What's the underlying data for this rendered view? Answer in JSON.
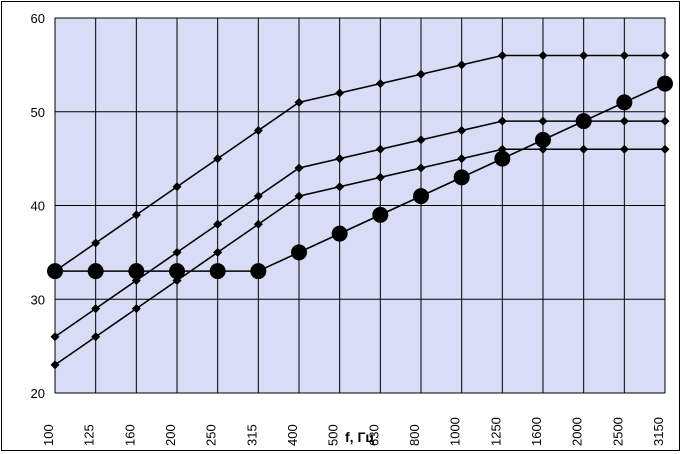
{
  "chart_data": {
    "type": "line",
    "title": "",
    "xlabel": "f, Гц",
    "ylabel": "",
    "categories": [
      "100",
      "125",
      "160",
      "200",
      "250",
      "315",
      "400",
      "500",
      "630",
      "800",
      "1000",
      "1250",
      "1600",
      "2000",
      "2500",
      "3150"
    ],
    "ylim": [
      20,
      60
    ],
    "yticks": [
      20,
      30,
      40,
      50,
      60
    ],
    "grid": true,
    "legend": "none",
    "colors": {
      "plot_bg": "#d8dcf5",
      "line": "#000000",
      "grid": "#000000"
    },
    "series": [
      {
        "marker": "diamond",
        "values": [
          33,
          36,
          39,
          42,
          45,
          48,
          51,
          52,
          53,
          54,
          55,
          56,
          56,
          56,
          56,
          56
        ]
      },
      {
        "marker": "diamond",
        "values": [
          26,
          29,
          32,
          35,
          38,
          41,
          44,
          45,
          46,
          47,
          48,
          49,
          49,
          49,
          49,
          49
        ]
      },
      {
        "marker": "diamond",
        "values": [
          23,
          26,
          29,
          32,
          35,
          38,
          41,
          42,
          43,
          44,
          45,
          46,
          46,
          46,
          46,
          46
        ]
      },
      {
        "marker": "circle",
        "values": [
          33,
          33,
          33,
          33,
          33,
          33,
          35,
          37,
          39,
          41,
          43,
          45,
          47,
          49,
          51,
          53
        ]
      }
    ]
  }
}
